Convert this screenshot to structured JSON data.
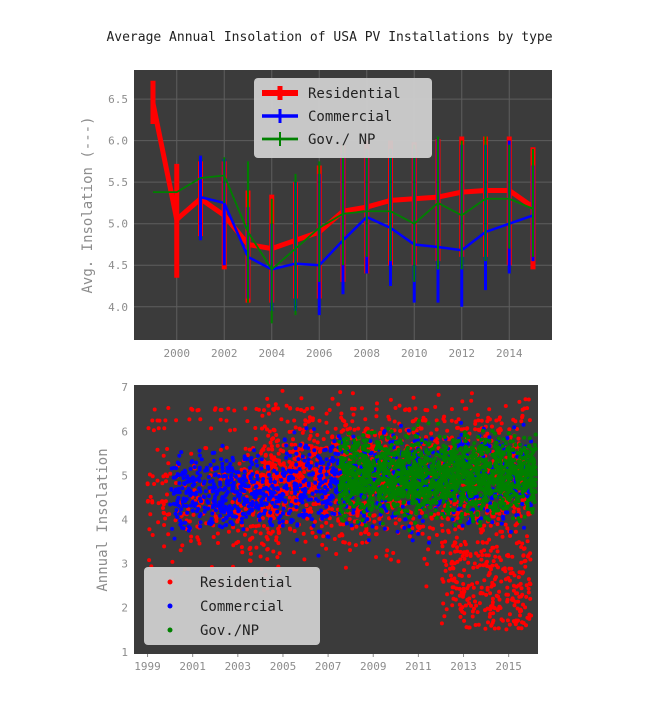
{
  "title": "Average Annual Insolation of USA PV Installations by type",
  "colors": {
    "Residential": "#ff0000",
    "Commercial": "#0000ff",
    "Gov./ NP": "#008000",
    "panel_bg": "#3b3b3b",
    "grid": "#5e5e5e"
  },
  "chart_data": [
    {
      "type": "line",
      "ylabel": "Avg. Insolation (---)",
      "xlim": [
        1998.2,
        2015.8
      ],
      "ylim": [
        3.6,
        6.85
      ],
      "xticks": [
        "2000",
        "2002",
        "2004",
        "2006",
        "2008",
        "2010",
        "2012",
        "2014"
      ],
      "yticks": [
        "4.0",
        "4.5",
        "5.0",
        "5.5",
        "6.0",
        "6.5"
      ],
      "grid": true,
      "legend_position": "top-center",
      "error_bars": true,
      "x": [
        1999,
        2000,
        2001,
        2002,
        2003,
        2004,
        2005,
        2006,
        2007,
        2008,
        2009,
        2010,
        2011,
        2012,
        2013,
        2014,
        2015
      ],
      "series": [
        {
          "name": "Residential",
          "values": [
            6.45,
            5.05,
            5.3,
            5.1,
            4.75,
            4.7,
            4.8,
            4.9,
            5.15,
            5.2,
            5.28,
            5.3,
            5.32,
            5.38,
            5.4,
            5.4,
            5.2
          ],
          "err_low": [
            6.2,
            4.35,
            4.85,
            4.45,
            4.05,
            4.05,
            4.1,
            4.1,
            4.3,
            4.4,
            4.5,
            4.5,
            4.55,
            4.6,
            4.6,
            4.5,
            4.45
          ],
          "err_high": [
            6.72,
            5.72,
            5.75,
            5.75,
            5.4,
            5.35,
            5.5,
            5.7,
            5.95,
            6.0,
            6.0,
            5.98,
            6.02,
            6.05,
            6.05,
            6.05,
            5.92
          ]
        },
        {
          "name": "Commercial",
          "values": [
            null,
            null,
            5.32,
            5.25,
            4.6,
            4.45,
            4.52,
            4.5,
            4.8,
            5.08,
            4.95,
            4.75,
            4.72,
            4.68,
            4.9,
            5.0,
            5.1
          ],
          "err_low": [
            null,
            null,
            4.8,
            4.5,
            4.1,
            3.95,
            3.95,
            3.9,
            4.15,
            4.4,
            4.25,
            4.05,
            4.05,
            4.0,
            4.2,
            4.4,
            4.55
          ],
          "err_high": [
            null,
            null,
            5.82,
            5.78,
            5.2,
            5.0,
            5.5,
            5.6,
            5.85,
            5.9,
            5.9,
            5.9,
            6.02,
            5.95,
            5.95,
            6.0,
            5.7
          ]
        },
        {
          "name": "Gov./ NP",
          "values": [
            5.38,
            5.38,
            5.55,
            5.58,
            4.9,
            4.45,
            4.7,
            4.95,
            5.12,
            5.15,
            5.15,
            5.0,
            5.25,
            5.1,
            5.3,
            5.3,
            5.18
          ],
          "err_low": [
            null,
            null,
            null,
            5.25,
            4.05,
            3.8,
            3.9,
            4.3,
            4.5,
            4.6,
            4.55,
            4.3,
            4.45,
            4.45,
            4.55,
            4.7,
            4.6
          ],
          "err_high": [
            null,
            null,
            null,
            5.8,
            5.75,
            5.3,
            5.6,
            5.75,
            5.95,
            5.9,
            5.9,
            5.95,
            6.05,
            6.0,
            6.05,
            5.95,
            5.9
          ]
        }
      ]
    },
    {
      "type": "scatter",
      "ylabel": "Annual Insolation",
      "xlim": [
        1998.4,
        2016.3
      ],
      "ylim": [
        0.95,
        7.05
      ],
      "xticks": [
        "1999",
        "2001",
        "2003",
        "2005",
        "2007",
        "2009",
        "2011",
        "2013",
        "2015"
      ],
      "yticks": [
        "1",
        "2",
        "3",
        "4",
        "5",
        "6",
        "7"
      ],
      "grid": false,
      "legend_position": "lower-left",
      "series": [
        {
          "name": "Residential",
          "x_range": [
            1999,
            2016
          ],
          "y_range": [
            1.2,
            6.8
          ]
        },
        {
          "name": "Commercial",
          "x_range": [
            2000,
            2016
          ],
          "y_range": [
            1.8,
            6.7
          ]
        },
        {
          "name": "Gov./NP",
          "x_range": [
            2007.5,
            2016
          ],
          "y_range": [
            3.5,
            6.6
          ]
        }
      ]
    }
  ]
}
